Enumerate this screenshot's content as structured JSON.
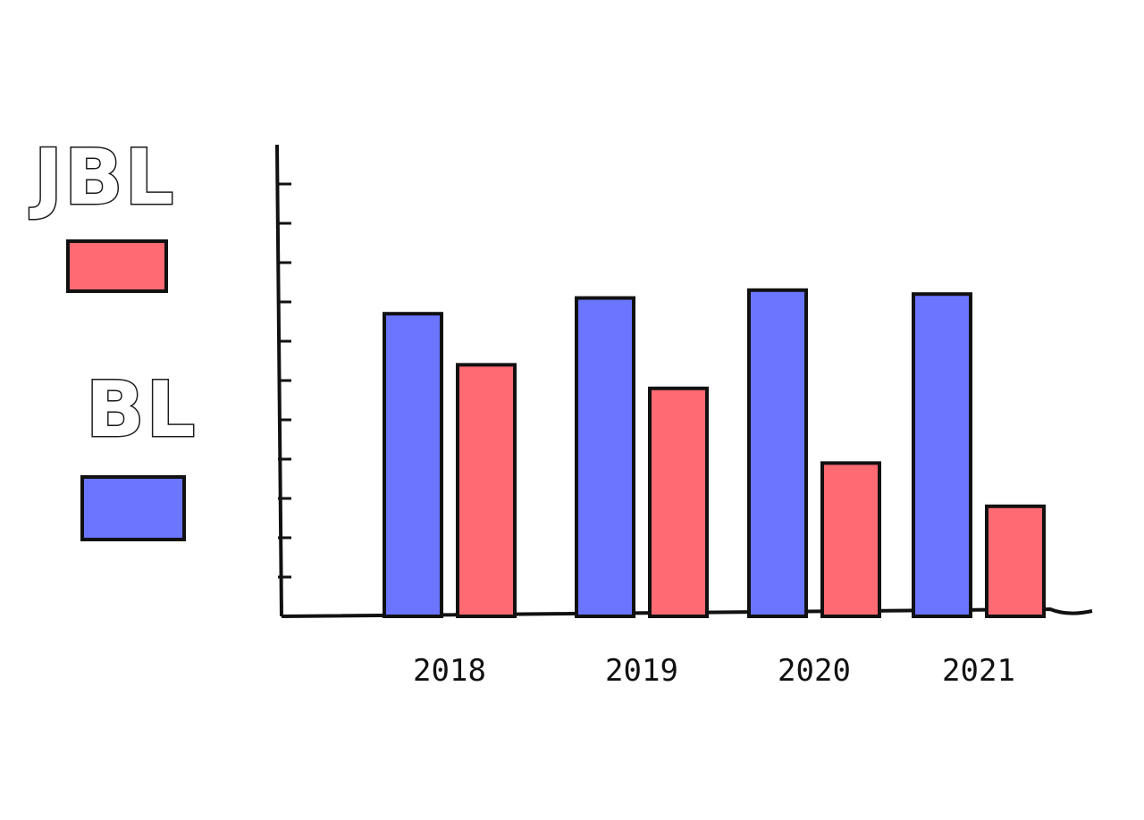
{
  "chart_data": {
    "type": "bar",
    "categories": [
      "2018",
      "2019",
      "2020",
      "2021"
    ],
    "series": [
      {
        "name": "BL",
        "color": "#6b75ff",
        "values": [
          7.7,
          8.1,
          8.3,
          8.2
        ]
      },
      {
        "name": "JBL",
        "color": "#ff6a73",
        "values": [
          6.4,
          5.8,
          3.9,
          2.8
        ]
      }
    ],
    "legend": "left",
    "grid": false,
    "ylim": [
      0,
      12
    ],
    "title": "",
    "xlabel": "",
    "ylabel": ""
  }
}
